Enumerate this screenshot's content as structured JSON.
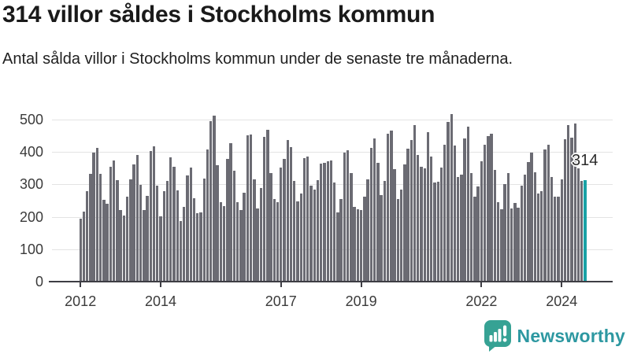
{
  "header": {
    "title": "314 villor såldes i Stockholms kommun",
    "subtitle": "Antal sålda villor i Stockholms kommun under de senaste tre månaderna."
  },
  "chart_data": {
    "type": "bar",
    "title": "314 villor såldes i Stockholms kommun",
    "xlabel": "",
    "ylabel": "",
    "x_range": {
      "start": "2012-01",
      "end": "2024-08",
      "interval": "monthly"
    },
    "values": [
      193,
      215,
      280,
      332,
      397,
      413,
      332,
      253,
      240,
      355,
      373,
      312,
      222,
      203,
      262,
      315,
      362,
      390,
      298,
      222,
      265,
      403,
      417,
      297,
      202,
      278,
      311,
      383,
      355,
      281,
      188,
      230,
      327,
      351,
      258,
      210,
      214,
      319,
      407,
      494,
      513,
      359,
      246,
      234,
      379,
      427,
      343,
      246,
      222,
      274,
      451,
      453,
      315,
      226,
      288,
      447,
      469,
      335,
      254,
      246,
      353,
      379,
      437,
      415,
      311,
      248,
      272,
      381,
      385,
      296,
      283,
      312,
      363,
      367,
      371,
      375,
      307,
      214,
      254,
      399,
      406,
      335,
      230,
      224,
      220,
      262,
      315,
      413,
      441,
      367,
      266,
      311,
      457,
      465,
      347,
      256,
      284,
      361,
      411,
      438,
      484,
      391,
      355,
      349,
      461,
      387,
      307,
      309,
      353,
      423,
      492,
      518,
      421,
      323,
      331,
      441,
      478,
      335,
      262,
      294,
      371,
      423,
      449,
      456,
      344,
      245,
      224,
      301,
      336,
      226,
      242,
      228,
      296,
      331,
      369,
      397,
      337,
      271,
      280,
      407,
      423,
      323,
      261,
      262,
      316,
      440,
      484,
      444,
      487,
      349,
      310,
      314
    ],
    "ylim": [
      0,
      500
    ],
    "yticks": [
      0,
      100,
      200,
      300,
      400,
      500
    ],
    "xtick_labels": [
      "2012",
      "2014",
      "2017",
      "2019",
      "2022",
      "2024"
    ],
    "xtick_year_base": 2012,
    "grid": true,
    "legend": "none",
    "bar_color": "#6b6b73",
    "highlight_color": "#18a1a5",
    "highlight_index": 151,
    "annotation": {
      "text": "314",
      "value": 314
    }
  },
  "footer": {
    "brand": "Newsworthy",
    "logo_icon": "newsworthy-speech-bubble-bars-icon",
    "logo_color": "#36a294",
    "brand_text_color": "#2d98a1"
  }
}
